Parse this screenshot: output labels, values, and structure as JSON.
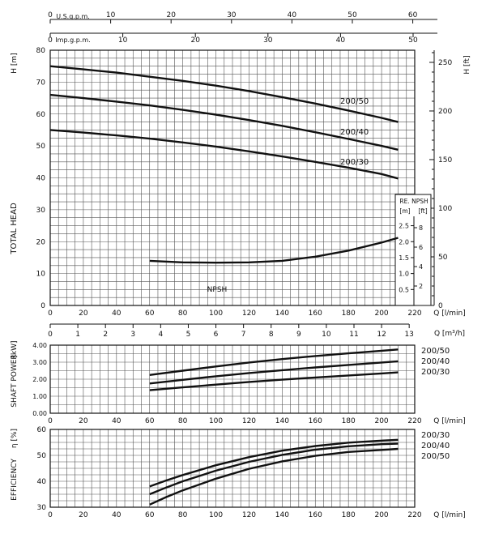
{
  "chart_data": [
    {
      "type": "line",
      "name": "head",
      "ylabel_left": "TOTAL HEAD",
      "yunit_left": "H [m]",
      "yunit_right": "H [ft]",
      "xunit": "Q [l/min]",
      "top_axis_1": {
        "label": "U.S.g.p.m.",
        "ticks": [
          "0",
          "10",
          "20",
          "30",
          "40",
          "50",
          "60"
        ]
      },
      "top_axis_2": {
        "label": "Imp.g.p.m.",
        "ticks": [
          "0",
          "10",
          "20",
          "30",
          "40",
          "50"
        ]
      },
      "xlim": [
        0,
        220
      ],
      "ylim": [
        0,
        80
      ],
      "x_ticks": [
        0,
        20,
        40,
        60,
        80,
        100,
        120,
        140,
        160,
        180,
        200,
        220
      ],
      "y_ticks": [
        0,
        10,
        20,
        30,
        40,
        50,
        60,
        70,
        80
      ],
      "ft_ticks": [
        0,
        50,
        100,
        150,
        200,
        250
      ],
      "series": [
        {
          "name": "200/50",
          "x": [
            0,
            20,
            40,
            60,
            80,
            100,
            120,
            140,
            160,
            180,
            200,
            210
          ],
          "values": [
            75,
            74,
            73,
            71.7,
            70.4,
            68.9,
            67.2,
            65.3,
            63.3,
            61.1,
            58.8,
            57.5
          ]
        },
        {
          "name": "200/40",
          "x": [
            0,
            20,
            40,
            60,
            80,
            100,
            120,
            140,
            160,
            180,
            200,
            210
          ],
          "values": [
            66,
            65,
            63.9,
            62.7,
            61.3,
            59.8,
            58.1,
            56.3,
            54.3,
            52.2,
            50,
            48.8
          ]
        },
        {
          "name": "200/30",
          "x": [
            0,
            20,
            40,
            60,
            80,
            100,
            120,
            140,
            160,
            180,
            200,
            210
          ],
          "values": [
            55,
            54.2,
            53.3,
            52.3,
            51.1,
            49.8,
            48.3,
            46.7,
            45,
            43.2,
            41.2,
            39.8
          ]
        },
        {
          "name": "NPSH",
          "x": [
            60,
            80,
            100,
            120,
            140,
            160,
            180,
            200,
            210
          ],
          "values": [
            14,
            13.5,
            13.4,
            13.5,
            14,
            15.3,
            17.2,
            19.7,
            21.2
          ]
        }
      ],
      "npsh_inset": {
        "title": "RE. NPSH",
        "unit_m": "[m]",
        "unit_ft": "[ft]",
        "m_ticks": [
          "0.5",
          "1.0",
          "1.5",
          "2.0",
          "2.5"
        ],
        "ft_ticks": [
          "2",
          "4",
          "6",
          "8"
        ]
      }
    },
    {
      "type": "axis",
      "name": "flow-m3h",
      "unit": "Q [m³/h]",
      "ticks": [
        "0",
        "1",
        "2",
        "3",
        "4",
        "5",
        "6",
        "7",
        "8",
        "9",
        "10",
        "11",
        "12",
        "13"
      ]
    },
    {
      "type": "line",
      "name": "shaft-power",
      "ylabel": "SHAFT POWER",
      "yunit": "[kW]",
      "xunit": "Q [l/min]",
      "xlim": [
        0,
        220
      ],
      "ylim": [
        0,
        4
      ],
      "y_tick_labels": [
        "0.00",
        "1.00",
        "2.00",
        "3.00",
        "4.00"
      ],
      "x_ticks": [
        0,
        20,
        40,
        60,
        80,
        100,
        120,
        140,
        160,
        180,
        200,
        220
      ],
      "series": [
        {
          "name": "200/50",
          "x": [
            60,
            80,
            100,
            120,
            140,
            160,
            180,
            200,
            210
          ],
          "values": [
            2.25,
            2.5,
            2.75,
            2.98,
            3.18,
            3.36,
            3.52,
            3.67,
            3.75
          ]
        },
        {
          "name": "200/40",
          "x": [
            60,
            80,
            100,
            120,
            140,
            160,
            180,
            200,
            210
          ],
          "values": [
            1.75,
            1.96,
            2.17,
            2.36,
            2.53,
            2.69,
            2.84,
            2.98,
            3.05
          ]
        },
        {
          "name": "200/30",
          "x": [
            60,
            80,
            100,
            120,
            140,
            160,
            180,
            200,
            210
          ],
          "values": [
            1.35,
            1.52,
            1.68,
            1.84,
            1.97,
            2.1,
            2.22,
            2.34,
            2.4
          ]
        }
      ]
    },
    {
      "type": "line",
      "name": "efficiency",
      "ylabel": "EFFICIENCY",
      "yunit": "η [%]",
      "xunit": "Q [l/min]",
      "xlim": [
        0,
        220
      ],
      "ylim": [
        30,
        60
      ],
      "y_ticks": [
        30,
        40,
        50,
        60
      ],
      "x_ticks": [
        0,
        20,
        40,
        60,
        80,
        100,
        120,
        140,
        160,
        180,
        200,
        220
      ],
      "series": [
        {
          "name": "200/30",
          "x": [
            60,
            70,
            80,
            100,
            120,
            140,
            160,
            180,
            200,
            210
          ],
          "values": [
            38,
            40.3,
            42.4,
            46.2,
            49.3,
            51.8,
            53.6,
            54.9,
            55.7,
            56
          ]
        },
        {
          "name": "200/40",
          "x": [
            60,
            70,
            80,
            100,
            120,
            140,
            160,
            180,
            200,
            210
          ],
          "values": [
            35,
            37.6,
            40,
            44.1,
            47.5,
            50.2,
            52.2,
            53.5,
            54.3,
            54.5
          ]
        },
        {
          "name": "200/50",
          "x": [
            60,
            70,
            80,
            100,
            120,
            140,
            160,
            180,
            200,
            210
          ],
          "values": [
            31,
            33.9,
            36.5,
            41,
            44.8,
            47.7,
            49.8,
            51.3,
            52.1,
            52.5
          ]
        }
      ]
    }
  ]
}
